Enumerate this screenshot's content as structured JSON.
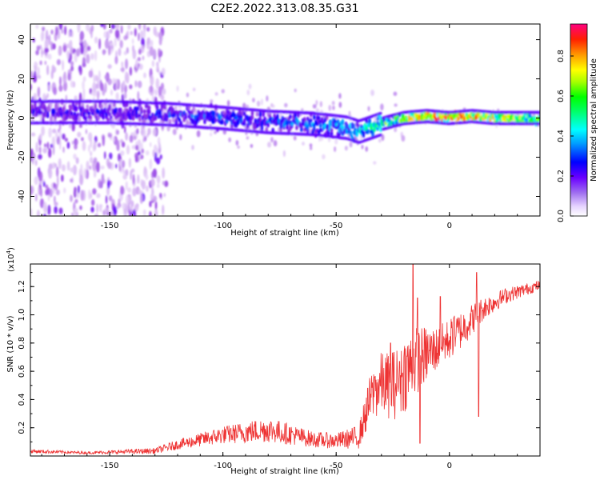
{
  "title": "C2E2.2022.313.08.35.G31",
  "chart_data": [
    {
      "type": "heatmap",
      "name": "spectrogram",
      "xlabel": "Height of straight line (km)",
      "ylabel": "Frequency (Hz)",
      "xlim": [
        -185,
        40
      ],
      "ylim": [
        -50,
        48
      ],
      "x_ticks": [
        -150,
        -100,
        -50,
        0
      ],
      "x_tick_labels": [
        "-150",
        "-100",
        "-50",
        "0"
      ],
      "y_ticks": [
        40,
        20,
        0,
        -20,
        -40
      ],
      "y_tick_labels": [
        "40",
        "20",
        "0",
        "-20",
        "-40"
      ],
      "colorbar": {
        "label": "Normalized spectral amplitude",
        "range": [
          0,
          0.96
        ],
        "ticks": [
          0.0,
          0.2,
          0.4,
          0.6,
          0.8
        ],
        "tick_labels": [
          "0.0",
          "0.2",
          "0.4",
          "0.6",
          "0.8"
        ],
        "colormap": [
          "#ffffff",
          "#c89cf0",
          "#8a2be2",
          "#5a00ff",
          "#0000ff",
          "#00a0ff",
          "#00ffff",
          "#00ff60",
          "#00ff00",
          "#aaff00",
          "#ffff00",
          "#ff9900",
          "#ff2000",
          "#ff0080"
        ]
      },
      "ridge": [
        {
          "x": -185,
          "freq": 3,
          "amp": 0.25
        },
        {
          "x": -150,
          "freq": 3,
          "amp": 0.28
        },
        {
          "x": -125,
          "freq": 2,
          "amp": 0.3
        },
        {
          "x": -100,
          "freq": 0,
          "amp": 0.32
        },
        {
          "x": -80,
          "freq": -2,
          "amp": 0.33
        },
        {
          "x": -60,
          "freq": -3,
          "amp": 0.35
        },
        {
          "x": -45,
          "freq": -5,
          "amp": 0.4
        },
        {
          "x": -40,
          "freq": -7,
          "amp": 0.42
        },
        {
          "x": -30,
          "freq": -3,
          "amp": 0.55
        },
        {
          "x": -20,
          "freq": 0,
          "amp": 0.65
        },
        {
          "x": -10,
          "freq": 1,
          "amp": 0.75
        },
        {
          "x": 0,
          "freq": 0,
          "amp": 0.82
        },
        {
          "x": 10,
          "freq": 1,
          "amp": 0.8
        },
        {
          "x": 20,
          "freq": 0,
          "amp": 0.68
        },
        {
          "x": 40,
          "freq": 0,
          "amp": 0.6
        }
      ]
    },
    {
      "type": "line",
      "name": "snr",
      "xlabel": "Height of straight line (km)",
      "ylabel": "SNR (10 * v/v)",
      "y_multiplier_label": "(x10",
      "y_multiplier_exp": "4",
      "y_multiplier_close": ")",
      "xlim": [
        -185,
        40
      ],
      "ylim": [
        0,
        13600
      ],
      "x_ticks": [
        -150,
        -100,
        -50,
        0
      ],
      "x_tick_labels": [
        "-150",
        "-100",
        "-50",
        "0"
      ],
      "y_ticks": [
        2000,
        4000,
        6000,
        8000,
        10000,
        12000
      ],
      "y_tick_labels": [
        "0.2",
        "0.4",
        "0.6",
        "0.8",
        "1.0",
        "1.2"
      ],
      "color": "#ee3333",
      "envelope": [
        {
          "x": -185,
          "base": 300,
          "noise": 200
        },
        {
          "x": -160,
          "base": 200,
          "noise": 120
        },
        {
          "x": -130,
          "base": 300,
          "noise": 300
        },
        {
          "x": -120,
          "base": 700,
          "noise": 500
        },
        {
          "x": -100,
          "base": 1300,
          "noise": 900
        },
        {
          "x": -80,
          "base": 1600,
          "noise": 1300
        },
        {
          "x": -60,
          "base": 1000,
          "noise": 800
        },
        {
          "x": -50,
          "base": 900,
          "noise": 800
        },
        {
          "x": -40,
          "base": 1100,
          "noise": 1200
        },
        {
          "x": -35,
          "base": 3500,
          "noise": 2500
        },
        {
          "x": -30,
          "base": 4500,
          "noise": 3200
        },
        {
          "x": -25,
          "base": 4200,
          "noise": 3500
        },
        {
          "x": -20,
          "base": 5000,
          "noise": 4000
        },
        {
          "x": -15,
          "base": 6000,
          "noise": 3500
        },
        {
          "x": -5,
          "base": 7200,
          "noise": 2200
        },
        {
          "x": 5,
          "base": 8500,
          "noise": 2000
        },
        {
          "x": 15,
          "base": 10200,
          "noise": 1200
        },
        {
          "x": 25,
          "base": 11200,
          "noise": 800
        },
        {
          "x": 40,
          "base": 12000,
          "noise": 500
        }
      ],
      "spikes": [
        {
          "x": -36,
          "y": 4800
        },
        {
          "x": -33,
          "y": 5600
        },
        {
          "x": -26,
          "y": 8000
        },
        {
          "x": -25,
          "y": 7300
        },
        {
          "x": -22,
          "y": 6700
        },
        {
          "x": -16,
          "y": 13600
        },
        {
          "x": -14,
          "y": 11200
        },
        {
          "x": -13,
          "y": 900
        },
        {
          "x": -4,
          "y": 11300
        },
        {
          "x": 12,
          "y": 13000
        },
        {
          "x": 13,
          "y": 2800
        },
        {
          "x": 2,
          "y": 9800
        }
      ]
    }
  ]
}
